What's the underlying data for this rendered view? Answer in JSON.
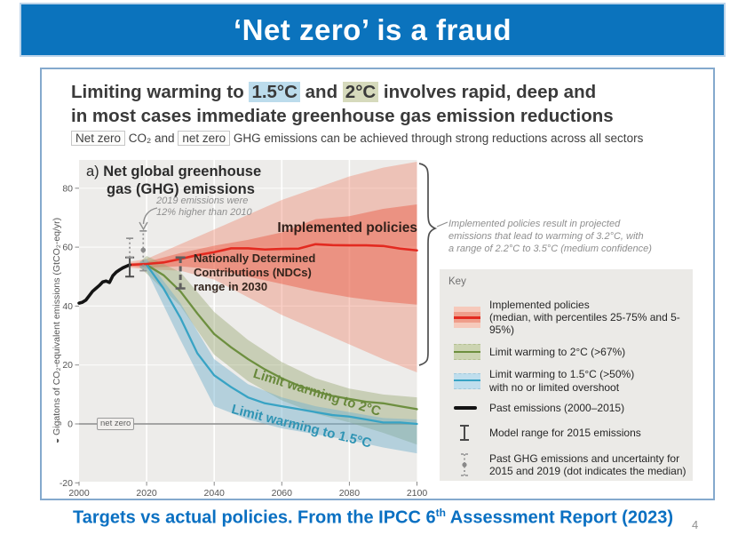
{
  "banner": {
    "title": "‘Net zero’ is a fraud"
  },
  "heading": {
    "pre": "Limiting warming to ",
    "hl1": "1.5°C",
    "mid": " and ",
    "hl2": "2°C",
    "post": " involves rapid, deep and",
    "line2": "in most cases immediate greenhouse gas emission reductions"
  },
  "subheading": {
    "box1": "Net zero",
    "mid1": " CO₂ and ",
    "box2": "net zero",
    "rest": " GHG emissions can be achieved through strong reductions across all sectors"
  },
  "chart": {
    "panel_label": "a) ",
    "title_line1": "Net global greenhouse",
    "title_line2": "gas (GHG) emissions",
    "y_axis_icon": "◒",
    "y_axis_label": " Gigatons of CO₂-equivalent emissions (GtCO₂-eq/yr)",
    "net_zero_label": "net zero",
    "implemented_label": "Implemented policies",
    "ndc_label_line1": "Nationally Determined",
    "ndc_label_line2": "Contributions (NDCs)",
    "ndc_label_line3": "range in 2030",
    "ann2019_line1": "2019 emissions were",
    "ann2019_line2": "12% higher than 2010",
    "curve_label_2c": "Limit warming to 2°C",
    "curve_label_15c": "Limit warming to 1.5°C",
    "side_note_line1": "Implemented policies result in projected",
    "side_note_line2": "emissions that lead to warming of 3.2°C, with",
    "side_note_line3": "a range of 2.2°C to 3.5°C (medium confidence)"
  },
  "legend": {
    "title": "Key",
    "items": [
      {
        "line1": "Implemented policies",
        "line2": "(median, with percentiles 25-75% and 5-95%)"
      },
      {
        "line1": "Limit warming to 2°C (>67%)",
        "line2": ""
      },
      {
        "line1": "Limit warming to 1.5°C (>50%)",
        "line2": "with no or limited overshoot"
      },
      {
        "line1": "Past emissions (2000–2015)",
        "line2": ""
      },
      {
        "line1": "Model range for 2015 emissions",
        "line2": ""
      },
      {
        "line1": "Past GHG emissions and uncertainty for",
        "line2": "2015 and 2019 (dot indicates the median)"
      }
    ]
  },
  "caption": {
    "part1": "Targets vs actual policies. From the IPCC 6",
    "sup": "th",
    "part2": " Assessment Report (2023)"
  },
  "page_number": "4",
  "colors": {
    "banner_blue": "#0b73bd",
    "caption_blue": "#0a70c2",
    "highlight_15c": "#bcdcec",
    "highlight_2c": "#d6dabc",
    "plot_background": "#edecea"
  },
  "chart_data": {
    "type": "line",
    "title": "a) Net global greenhouse gas (GHG) emissions",
    "xlabel": "",
    "ylabel": "Gigatons of CO₂-equivalent emissions (GtCO₂-eq/yr)",
    "xlim": [
      2000,
      2100
    ],
    "ylim": [
      -20,
      90
    ],
    "x_ticks": [
      2000,
      2020,
      2040,
      2060,
      2080,
      2100
    ],
    "y_ticks": [
      -20,
      0,
      20,
      40,
      60,
      80
    ],
    "grid": true,
    "legend_position": "right-bottom",
    "net_zero_value": 0,
    "series": [
      {
        "name": "Past emissions (2000–2015)",
        "color": "#141414",
        "x": [
          2000,
          2001,
          2002,
          2003,
          2004,
          2005,
          2006,
          2007,
          2008,
          2009,
          2010,
          2011,
          2012,
          2013,
          2014,
          2015
        ],
        "y": [
          41,
          41.3,
          42,
          43.5,
          45,
          46,
          47,
          48.2,
          48.5,
          48,
          50.3,
          51.5,
          52.3,
          53,
          53.5,
          54
        ]
      },
      {
        "name": "Implemented policies (median)",
        "color": "#e32a20",
        "x": [
          2015,
          2020,
          2025,
          2030,
          2035,
          2040,
          2045,
          2050,
          2055,
          2060,
          2065,
          2070,
          2075,
          2080,
          2085,
          2090,
          2095,
          2100
        ],
        "y": [
          54,
          54.3,
          54.8,
          56,
          57.3,
          58.3,
          59.6,
          59.6,
          59.2,
          59.4,
          59.5,
          61,
          60.7,
          60.6,
          60.6,
          60.4,
          59.5,
          58.9
        ]
      },
      {
        "name": "Limit warming to 2°C (>67%)",
        "color": "#6d8f3f",
        "x": [
          2020,
          2025,
          2030,
          2035,
          2040,
          2045,
          2050,
          2055,
          2060,
          2065,
          2070,
          2075,
          2080,
          2085,
          2090,
          2095,
          2100
        ],
        "y": [
          54,
          50.5,
          45,
          37.5,
          30.5,
          26,
          22,
          18.5,
          15.5,
          13,
          11,
          9.5,
          8.5,
          7.5,
          7,
          6,
          5
        ]
      },
      {
        "name": "Limit warming to 1.5°C (>50%) with no or limited overshoot",
        "color": "#38a3c4",
        "x": [
          2020,
          2025,
          2030,
          2035,
          2040,
          2045,
          2050,
          2055,
          2060,
          2065,
          2070,
          2075,
          2080,
          2085,
          2090,
          2095,
          2100
        ],
        "y": [
          54,
          46,
          36,
          24,
          16.5,
          12.5,
          9,
          7,
          6,
          5,
          4,
          3,
          2.5,
          1.5,
          0.5,
          0.5,
          0
        ]
      }
    ],
    "bands": [
      {
        "name": "implemented-policies-5-95",
        "color": "rgba(236,108,80,0.33)",
        "x": [
          2015,
          2020,
          2030,
          2040,
          2050,
          2060,
          2070,
          2080,
          2090,
          2100
        ],
        "top": [
          55,
          56,
          61,
          66,
          71,
          76,
          80,
          84,
          87,
          89
        ],
        "bottom": [
          53,
          52.5,
          52,
          49,
          43,
          37,
          32,
          27,
          22,
          17.5
        ]
      },
      {
        "name": "implemented-policies-25-75",
        "color": "rgba(233,88,66,0.45)",
        "x": [
          2015,
          2020,
          2030,
          2040,
          2050,
          2060,
          2070,
          2080,
          2090,
          2100
        ],
        "top": [
          54.5,
          55,
          58,
          60.5,
          62.5,
          65,
          69.5,
          70.5,
          73,
          74.5
        ],
        "bottom": [
          53.5,
          53,
          53.5,
          52.5,
          50,
          47.5,
          45,
          43,
          41.5,
          40.5
        ]
      },
      {
        "name": "limit-2c-range",
        "color": "rgba(150,165,110,0.42)",
        "x": [
          2018,
          2020,
          2030,
          2040,
          2050,
          2060,
          2070,
          2080,
          2090,
          2100
        ],
        "top": [
          55,
          57,
          51.5,
          38,
          28.5,
          21,
          15.5,
          12,
          10,
          9
        ],
        "bottom": [
          53,
          51,
          40,
          23.5,
          14.5,
          8,
          3.5,
          0.5,
          -3,
          -7
        ]
      },
      {
        "name": "limit-15c-range",
        "color": "rgba(110,175,205,0.45)",
        "x": [
          2018,
          2020,
          2030,
          2040,
          2050,
          2060,
          2070,
          2080,
          2090,
          2100
        ],
        "top": [
          55,
          56,
          41,
          22,
          13.5,
          9,
          6,
          4,
          2,
          1.5
        ],
        "bottom": [
          53,
          52,
          28.5,
          6,
          1.5,
          -1.5,
          -3.5,
          -5.5,
          -8,
          -10
        ]
      }
    ],
    "error_bars": [
      {
        "name": "model-range-2015",
        "x": 2015,
        "low": 50,
        "high": 56.5,
        "style": "solid"
      },
      {
        "name": "past-ghg-2015-uncertainty",
        "x": 2015,
        "low": 56.5,
        "high": 63,
        "style": "dotted"
      },
      {
        "name": "past-ghg-2019-uncertainty",
        "x": 2019,
        "low": 52,
        "high": 65.5,
        "style": "dotted"
      },
      {
        "name": "ndc-range-2030",
        "x": 2030,
        "low": 46,
        "high": 56.5,
        "style": "dashed"
      }
    ],
    "dots": [
      {
        "x": 2019,
        "y": 59
      }
    ]
  }
}
